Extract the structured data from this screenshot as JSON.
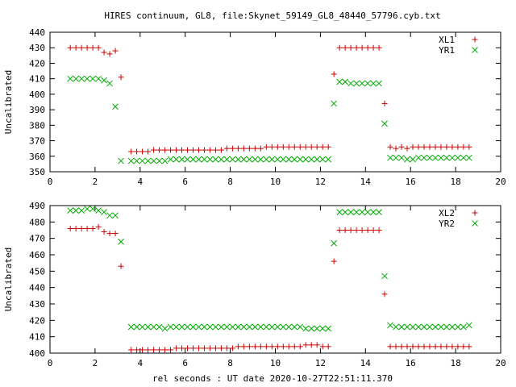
{
  "title": "HIRES continuum, GL8, file:Skynet_59149_GL8_48440_57796.cyb.txt",
  "xlabel": "rel seconds : UT date 2020-10-27T22:51:11.370",
  "colors": {
    "series1": "#cc0000",
    "series2": "#00aa00"
  },
  "chart_data": [
    {
      "type": "scatter",
      "ylabel": "Uncalibrated",
      "xlim": [
        0,
        20
      ],
      "ylim": [
        350,
        440
      ],
      "xticks": [
        0,
        2,
        4,
        6,
        8,
        10,
        12,
        14,
        16,
        18,
        20
      ],
      "yticks": [
        350,
        360,
        370,
        380,
        390,
        400,
        410,
        420,
        430,
        440
      ],
      "legend_position": "top-right",
      "series": [
        {
          "name": "XL1",
          "marker": "plus",
          "x": [
            0.9,
            1.15,
            1.4,
            1.65,
            1.9,
            2.15,
            2.4,
            2.65,
            2.9,
            3.15,
            3.6,
            3.85,
            4.1,
            4.35,
            4.6,
            4.85,
            5.1,
            5.35,
            5.6,
            5.85,
            6.1,
            6.35,
            6.6,
            6.85,
            7.1,
            7.35,
            7.6,
            7.85,
            8.1,
            8.35,
            8.6,
            8.85,
            9.1,
            9.35,
            9.6,
            9.85,
            10.1,
            10.35,
            10.6,
            10.85,
            11.1,
            11.35,
            11.6,
            11.85,
            12.1,
            12.35,
            12.6,
            12.85,
            13.1,
            13.35,
            13.6,
            13.85,
            14.1,
            14.35,
            14.6,
            14.85,
            15.1,
            15.35,
            15.6,
            15.85,
            16.1,
            16.35,
            16.6,
            16.85,
            17.1,
            17.35,
            17.6,
            17.85,
            18.1,
            18.35,
            18.6
          ],
          "y": [
            430,
            430,
            430,
            430,
            430,
            430,
            427,
            426,
            428,
            411,
            363,
            363,
            363,
            363,
            364,
            364,
            364,
            364,
            364,
            364,
            364,
            364,
            364,
            364,
            364,
            364,
            364,
            365,
            365,
            365,
            365,
            365,
            365,
            365,
            366,
            366,
            366,
            366,
            366,
            366,
            366,
            366,
            366,
            366,
            366,
            366,
            413,
            430,
            430,
            430,
            430,
            430,
            430,
            430,
            430,
            394,
            366,
            365,
            366,
            365,
            366,
            366,
            366,
            366,
            366,
            366,
            366,
            366,
            366,
            366,
            366
          ]
        },
        {
          "name": "YR1",
          "marker": "cross",
          "x": [
            0.9,
            1.15,
            1.4,
            1.65,
            1.9,
            2.15,
            2.4,
            2.65,
            2.9,
            3.15,
            3.6,
            3.85,
            4.1,
            4.35,
            4.6,
            4.85,
            5.1,
            5.35,
            5.6,
            5.85,
            6.1,
            6.35,
            6.6,
            6.85,
            7.1,
            7.35,
            7.6,
            7.85,
            8.1,
            8.35,
            8.6,
            8.85,
            9.1,
            9.35,
            9.6,
            9.85,
            10.1,
            10.35,
            10.6,
            10.85,
            11.1,
            11.35,
            11.6,
            11.85,
            12.1,
            12.35,
            12.6,
            12.85,
            13.1,
            13.35,
            13.6,
            13.85,
            14.1,
            14.35,
            14.6,
            14.85,
            15.1,
            15.35,
            15.6,
            15.85,
            16.1,
            16.35,
            16.6,
            16.85,
            17.1,
            17.35,
            17.6,
            17.85,
            18.1,
            18.35,
            18.6
          ],
          "y": [
            410,
            410,
            410,
            410,
            410,
            410,
            409,
            407,
            392,
            357,
            357,
            357,
            357,
            357,
            357,
            357,
            357,
            358,
            358,
            358,
            358,
            358,
            358,
            358,
            358,
            358,
            358,
            358,
            358,
            358,
            358,
            358,
            358,
            358,
            358,
            358,
            358,
            358,
            358,
            358,
            358,
            358,
            358,
            358,
            358,
            358,
            394,
            408,
            408,
            407,
            407,
            407,
            407,
            407,
            407,
            381,
            359,
            359,
            359,
            358,
            358,
            359,
            359,
            359,
            359,
            359,
            359,
            359,
            359,
            359,
            359
          ]
        }
      ]
    },
    {
      "type": "scatter",
      "ylabel": "Uncalibrated",
      "xlim": [
        0,
        20
      ],
      "ylim": [
        400,
        490
      ],
      "xticks": [
        0,
        2,
        4,
        6,
        8,
        10,
        12,
        14,
        16,
        18,
        20
      ],
      "yticks": [
        400,
        410,
        420,
        430,
        440,
        450,
        460,
        470,
        480,
        490
      ],
      "legend_position": "top-right",
      "series": [
        {
          "name": "XL2",
          "marker": "plus",
          "x": [
            0.9,
            1.15,
            1.4,
            1.65,
            1.9,
            2.15,
            2.4,
            2.65,
            2.9,
            3.15,
            3.6,
            3.85,
            4.1,
            4.35,
            4.6,
            4.85,
            5.1,
            5.35,
            5.6,
            5.85,
            6.1,
            6.35,
            6.6,
            6.85,
            7.1,
            7.35,
            7.6,
            7.85,
            8.1,
            8.35,
            8.6,
            8.85,
            9.1,
            9.35,
            9.6,
            9.85,
            10.1,
            10.35,
            10.6,
            10.85,
            11.1,
            11.35,
            11.6,
            11.85,
            12.1,
            12.35,
            12.6,
            12.85,
            13.1,
            13.35,
            13.6,
            13.85,
            14.1,
            14.35,
            14.6,
            14.85,
            15.1,
            15.35,
            15.6,
            15.85,
            16.1,
            16.35,
            16.6,
            16.85,
            17.1,
            17.35,
            17.6,
            17.85,
            18.1,
            18.35,
            18.6
          ],
          "y": [
            476,
            476,
            476,
            476,
            476,
            477,
            474,
            473,
            473,
            453,
            402,
            402,
            402,
            402,
            402,
            402,
            402,
            402,
            403,
            403,
            403,
            403,
            403,
            403,
            403,
            403,
            403,
            403,
            403,
            404,
            404,
            404,
            404,
            404,
            404,
            404,
            404,
            404,
            404,
            404,
            404,
            405,
            405,
            405,
            404,
            404,
            456,
            475,
            475,
            475,
            475,
            475,
            475,
            475,
            475,
            436,
            404,
            404,
            404,
            404,
            404,
            404,
            404,
            404,
            404,
            404,
            404,
            404,
            404,
            404,
            404
          ]
        },
        {
          "name": "YR2",
          "marker": "cross",
          "x": [
            0.9,
            1.15,
            1.4,
            1.65,
            1.9,
            2.15,
            2.4,
            2.65,
            2.9,
            3.15,
            3.6,
            3.85,
            4.1,
            4.35,
            4.6,
            4.85,
            5.1,
            5.35,
            5.6,
            5.85,
            6.1,
            6.35,
            6.6,
            6.85,
            7.1,
            7.35,
            7.6,
            7.85,
            8.1,
            8.35,
            8.6,
            8.85,
            9.1,
            9.35,
            9.6,
            9.85,
            10.1,
            10.35,
            10.6,
            10.85,
            11.1,
            11.35,
            11.6,
            11.85,
            12.1,
            12.35,
            12.6,
            12.85,
            13.1,
            13.35,
            13.6,
            13.85,
            14.1,
            14.35,
            14.6,
            14.85,
            15.1,
            15.35,
            15.6,
            15.85,
            16.1,
            16.35,
            16.6,
            16.85,
            17.1,
            17.35,
            17.6,
            17.85,
            18.1,
            18.35,
            18.6
          ],
          "y": [
            487,
            487,
            487,
            488,
            488,
            487,
            486,
            484,
            484,
            468,
            416,
            416,
            416,
            416,
            416,
            416,
            415,
            416,
            416,
            416,
            416,
            416,
            416,
            416,
            416,
            416,
            416,
            416,
            416,
            416,
            416,
            416,
            416,
            416,
            416,
            416,
            416,
            416,
            416,
            416,
            416,
            415,
            415,
            415,
            415,
            415,
            467,
            486,
            486,
            486,
            486,
            486,
            486,
            486,
            486,
            447,
            417,
            416,
            416,
            416,
            416,
            416,
            416,
            416,
            416,
            416,
            416,
            416,
            416,
            416,
            417
          ]
        }
      ]
    }
  ]
}
